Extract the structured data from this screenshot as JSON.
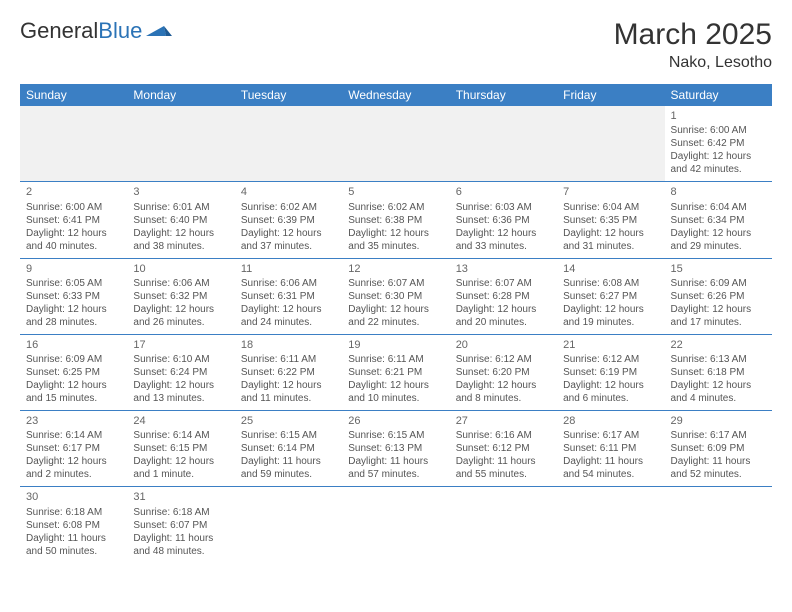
{
  "logo": {
    "text_general": "General",
    "text_blue": "Blue"
  },
  "header": {
    "month": "March 2025",
    "location": "Nako, Lesotho"
  },
  "colors": {
    "header_bg": "#3b7fc4",
    "header_fg": "#ffffff",
    "rule": "#3b7fc4",
    "blank_bg": "#f1f1f1"
  },
  "daynames": [
    "Sunday",
    "Monday",
    "Tuesday",
    "Wednesday",
    "Thursday",
    "Friday",
    "Saturday"
  ],
  "weeks": [
    [
      null,
      null,
      null,
      null,
      null,
      null,
      {
        "n": "1",
        "sr": "Sunrise: 6:00 AM",
        "ss": "Sunset: 6:42 PM",
        "d1": "Daylight: 12 hours",
        "d2": "and 42 minutes."
      }
    ],
    [
      {
        "n": "2",
        "sr": "Sunrise: 6:00 AM",
        "ss": "Sunset: 6:41 PM",
        "d1": "Daylight: 12 hours",
        "d2": "and 40 minutes."
      },
      {
        "n": "3",
        "sr": "Sunrise: 6:01 AM",
        "ss": "Sunset: 6:40 PM",
        "d1": "Daylight: 12 hours",
        "d2": "and 38 minutes."
      },
      {
        "n": "4",
        "sr": "Sunrise: 6:02 AM",
        "ss": "Sunset: 6:39 PM",
        "d1": "Daylight: 12 hours",
        "d2": "and 37 minutes."
      },
      {
        "n": "5",
        "sr": "Sunrise: 6:02 AM",
        "ss": "Sunset: 6:38 PM",
        "d1": "Daylight: 12 hours",
        "d2": "and 35 minutes."
      },
      {
        "n": "6",
        "sr": "Sunrise: 6:03 AM",
        "ss": "Sunset: 6:36 PM",
        "d1": "Daylight: 12 hours",
        "d2": "and 33 minutes."
      },
      {
        "n": "7",
        "sr": "Sunrise: 6:04 AM",
        "ss": "Sunset: 6:35 PM",
        "d1": "Daylight: 12 hours",
        "d2": "and 31 minutes."
      },
      {
        "n": "8",
        "sr": "Sunrise: 6:04 AM",
        "ss": "Sunset: 6:34 PM",
        "d1": "Daylight: 12 hours",
        "d2": "and 29 minutes."
      }
    ],
    [
      {
        "n": "9",
        "sr": "Sunrise: 6:05 AM",
        "ss": "Sunset: 6:33 PM",
        "d1": "Daylight: 12 hours",
        "d2": "and 28 minutes."
      },
      {
        "n": "10",
        "sr": "Sunrise: 6:06 AM",
        "ss": "Sunset: 6:32 PM",
        "d1": "Daylight: 12 hours",
        "d2": "and 26 minutes."
      },
      {
        "n": "11",
        "sr": "Sunrise: 6:06 AM",
        "ss": "Sunset: 6:31 PM",
        "d1": "Daylight: 12 hours",
        "d2": "and 24 minutes."
      },
      {
        "n": "12",
        "sr": "Sunrise: 6:07 AM",
        "ss": "Sunset: 6:30 PM",
        "d1": "Daylight: 12 hours",
        "d2": "and 22 minutes."
      },
      {
        "n": "13",
        "sr": "Sunrise: 6:07 AM",
        "ss": "Sunset: 6:28 PM",
        "d1": "Daylight: 12 hours",
        "d2": "and 20 minutes."
      },
      {
        "n": "14",
        "sr": "Sunrise: 6:08 AM",
        "ss": "Sunset: 6:27 PM",
        "d1": "Daylight: 12 hours",
        "d2": "and 19 minutes."
      },
      {
        "n": "15",
        "sr": "Sunrise: 6:09 AM",
        "ss": "Sunset: 6:26 PM",
        "d1": "Daylight: 12 hours",
        "d2": "and 17 minutes."
      }
    ],
    [
      {
        "n": "16",
        "sr": "Sunrise: 6:09 AM",
        "ss": "Sunset: 6:25 PM",
        "d1": "Daylight: 12 hours",
        "d2": "and 15 minutes."
      },
      {
        "n": "17",
        "sr": "Sunrise: 6:10 AM",
        "ss": "Sunset: 6:24 PM",
        "d1": "Daylight: 12 hours",
        "d2": "and 13 minutes."
      },
      {
        "n": "18",
        "sr": "Sunrise: 6:11 AM",
        "ss": "Sunset: 6:22 PM",
        "d1": "Daylight: 12 hours",
        "d2": "and 11 minutes."
      },
      {
        "n": "19",
        "sr": "Sunrise: 6:11 AM",
        "ss": "Sunset: 6:21 PM",
        "d1": "Daylight: 12 hours",
        "d2": "and 10 minutes."
      },
      {
        "n": "20",
        "sr": "Sunrise: 6:12 AM",
        "ss": "Sunset: 6:20 PM",
        "d1": "Daylight: 12 hours",
        "d2": "and 8 minutes."
      },
      {
        "n": "21",
        "sr": "Sunrise: 6:12 AM",
        "ss": "Sunset: 6:19 PM",
        "d1": "Daylight: 12 hours",
        "d2": "and 6 minutes."
      },
      {
        "n": "22",
        "sr": "Sunrise: 6:13 AM",
        "ss": "Sunset: 6:18 PM",
        "d1": "Daylight: 12 hours",
        "d2": "and 4 minutes."
      }
    ],
    [
      {
        "n": "23",
        "sr": "Sunrise: 6:14 AM",
        "ss": "Sunset: 6:17 PM",
        "d1": "Daylight: 12 hours",
        "d2": "and 2 minutes."
      },
      {
        "n": "24",
        "sr": "Sunrise: 6:14 AM",
        "ss": "Sunset: 6:15 PM",
        "d1": "Daylight: 12 hours",
        "d2": "and 1 minute."
      },
      {
        "n": "25",
        "sr": "Sunrise: 6:15 AM",
        "ss": "Sunset: 6:14 PM",
        "d1": "Daylight: 11 hours",
        "d2": "and 59 minutes."
      },
      {
        "n": "26",
        "sr": "Sunrise: 6:15 AM",
        "ss": "Sunset: 6:13 PM",
        "d1": "Daylight: 11 hours",
        "d2": "and 57 minutes."
      },
      {
        "n": "27",
        "sr": "Sunrise: 6:16 AM",
        "ss": "Sunset: 6:12 PM",
        "d1": "Daylight: 11 hours",
        "d2": "and 55 minutes."
      },
      {
        "n": "28",
        "sr": "Sunrise: 6:17 AM",
        "ss": "Sunset: 6:11 PM",
        "d1": "Daylight: 11 hours",
        "d2": "and 54 minutes."
      },
      {
        "n": "29",
        "sr": "Sunrise: 6:17 AM",
        "ss": "Sunset: 6:09 PM",
        "d1": "Daylight: 11 hours",
        "d2": "and 52 minutes."
      }
    ],
    [
      {
        "n": "30",
        "sr": "Sunrise: 6:18 AM",
        "ss": "Sunset: 6:08 PM",
        "d1": "Daylight: 11 hours",
        "d2": "and 50 minutes."
      },
      {
        "n": "31",
        "sr": "Sunrise: 6:18 AM",
        "ss": "Sunset: 6:07 PM",
        "d1": "Daylight: 11 hours",
        "d2": "and 48 minutes."
      },
      null,
      null,
      null,
      null,
      null
    ]
  ]
}
